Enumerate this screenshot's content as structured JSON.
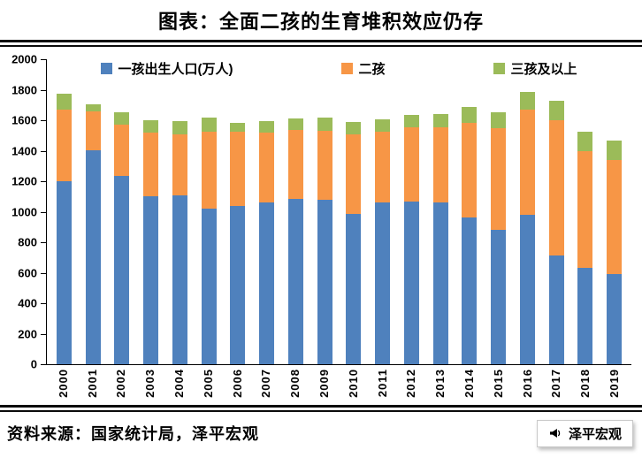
{
  "title": "图表：全面二孩的生育堆积效应仍存",
  "source": "资料来源：国家统计局，泽平宏观",
  "watermark": {
    "label": "泽平宏观",
    "icon": "megaphone-icon"
  },
  "chart_data": {
    "type": "bar",
    "stacked": true,
    "title": "图表：全面二孩的生育堆积效应仍存",
    "xlabel": "",
    "ylabel": "",
    "ylim": [
      0,
      2000
    ],
    "ytick_step": 200,
    "grid": false,
    "legend_position": "top",
    "categories": [
      "2000",
      "2001",
      "2002",
      "2003",
      "2004",
      "2005",
      "2006",
      "2007",
      "2008",
      "2009",
      "2010",
      "2011",
      "2012",
      "2013",
      "2014",
      "2015",
      "2016",
      "2017",
      "2018",
      "2019"
    ],
    "series": [
      {
        "name": "一孩出生人口(万人)",
        "color": "#4F81BD",
        "values": [
          1200,
          1405,
          1235,
          1100,
          1110,
          1020,
          1040,
          1060,
          1085,
          1080,
          985,
          1060,
          1065,
          1060,
          965,
          880,
          980,
          715,
          630,
          593
        ]
      },
      {
        "name": "二孩",
        "color": "#F79646",
        "values": [
          470,
          255,
          335,
          420,
          400,
          505,
          485,
          460,
          450,
          450,
          520,
          465,
          490,
          495,
          620,
          670,
          690,
          885,
          770,
          747
        ]
      },
      {
        "name": "三孩及以上",
        "color": "#9BBB59",
        "values": [
          105,
          45,
          80,
          80,
          85,
          90,
          60,
          75,
          75,
          85,
          85,
          80,
          80,
          85,
          105,
          105,
          115,
          125,
          123,
          125
        ]
      }
    ]
  }
}
